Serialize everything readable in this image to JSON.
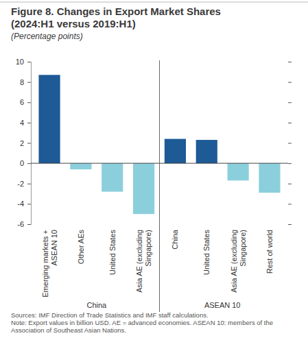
{
  "chart_data": {
    "type": "bar",
    "title": "Figure 8. Changes in Export Market Shares (2024:H1 versus 2019:H1)",
    "subtitle": "(Percentage points)",
    "groups": [
      {
        "name": "China",
        "categories": [
          "Emerging markets + ASEAN 10",
          "Other AEs",
          "United States",
          "Asia AE (excluding Singapore)"
        ],
        "values": [
          8.7,
          -0.6,
          -2.8,
          -5.0
        ],
        "colors": [
          "#1d5a96",
          "#8ccfdc",
          "#8ccfdc",
          "#8ccfdc"
        ]
      },
      {
        "name": "ASEAN 10",
        "categories": [
          "China",
          "United States",
          "Asia AE (excluding Singapore)",
          "Rest of world"
        ],
        "values": [
          2.4,
          2.3,
          -1.7,
          -2.9
        ],
        "colors": [
          "#1d5a96",
          "#1d5a96",
          "#8ccfdc",
          "#8ccfdc"
        ]
      }
    ],
    "ylim": [
      -6,
      10
    ],
    "yticks": [
      -6,
      -4,
      -2,
      0,
      2,
      4,
      6,
      8,
      10
    ],
    "sources": "Sources: IMF Direction of Trade Statistics and IMF staff calculations.",
    "note": "Note: Export values in billion USD. AE = advanced economies. ASEAN 10: members of the Association of Southeast Asian Nations."
  }
}
